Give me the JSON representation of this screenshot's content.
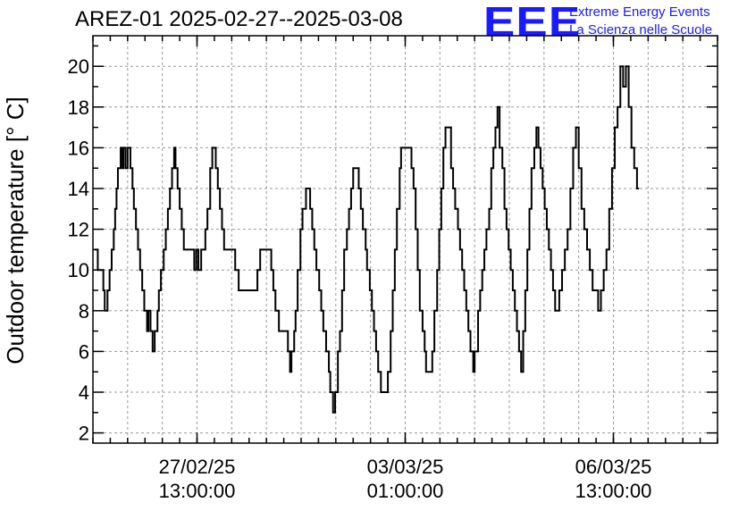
{
  "header": {
    "title": "AREZ-01 2025-02-27--2025-03-08",
    "logo": "EEE",
    "logo_line1": "Extreme Energy Events",
    "logo_line2": "La Scienza nelle Scuole"
  },
  "chart_data": {
    "type": "line",
    "title": "AREZ-01 2025-02-27--2025-03-08",
    "xlabel": "",
    "ylabel": "Outdoor temperature [° C]",
    "ylim": [
      1.5,
      21.5
    ],
    "y_ticks": [
      2,
      4,
      6,
      8,
      10,
      12,
      14,
      16,
      18,
      20
    ],
    "x_ticks": [
      {
        "t": 1,
        "label_line1": "27/02/25",
        "label_line2": "13:00:00"
      },
      {
        "t": 4,
        "label_line1": "03/03/25",
        "label_line2": "01:00:00"
      },
      {
        "t": 7,
        "label_line1": "06/03/25",
        "label_line2": "13:00:00"
      }
    ],
    "xlim": [
      -0.5,
      8.5
    ],
    "step_style": "histogram-step",
    "grid": true,
    "series": [
      {
        "color": "#000000",
        "points": [
          [
            -0.47,
            11
          ],
          [
            -0.43,
            10
          ],
          [
            -0.38,
            10
          ],
          [
            -0.35,
            9
          ],
          [
            -0.33,
            8
          ],
          [
            -0.29,
            9
          ],
          [
            -0.26,
            10
          ],
          [
            -0.23,
            11
          ],
          [
            -0.2,
            12
          ],
          [
            -0.18,
            13
          ],
          [
            -0.16,
            14
          ],
          [
            -0.14,
            15
          ],
          [
            -0.1,
            16
          ],
          [
            -0.08,
            15
          ],
          [
            -0.06,
            16
          ],
          [
            -0.03,
            15
          ],
          [
            0.0,
            16
          ],
          [
            0.04,
            15
          ],
          [
            0.07,
            14
          ],
          [
            0.09,
            13
          ],
          [
            0.12,
            12
          ],
          [
            0.15,
            11
          ],
          [
            0.18,
            10
          ],
          [
            0.21,
            9
          ],
          [
            0.24,
            8
          ],
          [
            0.28,
            7
          ],
          [
            0.3,
            8
          ],
          [
            0.33,
            7
          ],
          [
            0.36,
            6
          ],
          [
            0.39,
            7
          ],
          [
            0.43,
            8
          ],
          [
            0.45,
            9
          ],
          [
            0.48,
            10
          ],
          [
            0.52,
            11
          ],
          [
            0.55,
            12
          ],
          [
            0.58,
            13
          ],
          [
            0.61,
            14
          ],
          [
            0.64,
            15
          ],
          [
            0.67,
            16
          ],
          [
            0.69,
            15
          ],
          [
            0.72,
            14
          ],
          [
            0.75,
            13
          ],
          [
            0.78,
            12
          ],
          [
            0.81,
            11
          ],
          [
            0.93,
            11
          ],
          [
            0.96,
            10
          ],
          [
            0.99,
            11
          ],
          [
            1.02,
            10
          ],
          [
            1.06,
            11
          ],
          [
            1.12,
            12
          ],
          [
            1.15,
            13
          ],
          [
            1.19,
            15
          ],
          [
            1.22,
            16
          ],
          [
            1.27,
            15
          ],
          [
            1.3,
            14
          ],
          [
            1.33,
            13
          ],
          [
            1.36,
            12
          ],
          [
            1.39,
            11
          ],
          [
            1.52,
            11
          ],
          [
            1.55,
            10
          ],
          [
            1.6,
            9
          ],
          [
            1.84,
            9
          ],
          [
            1.87,
            10
          ],
          [
            1.91,
            11
          ],
          [
            2.07,
            10
          ],
          [
            2.1,
            9
          ],
          [
            2.13,
            8
          ],
          [
            2.18,
            7
          ],
          [
            2.31,
            6
          ],
          [
            2.34,
            5
          ],
          [
            2.36,
            6
          ],
          [
            2.4,
            7
          ],
          [
            2.42,
            8
          ],
          [
            2.45,
            10
          ],
          [
            2.49,
            12
          ],
          [
            2.52,
            13
          ],
          [
            2.57,
            14
          ],
          [
            2.63,
            13
          ],
          [
            2.66,
            12
          ],
          [
            2.69,
            11
          ],
          [
            2.72,
            10
          ],
          [
            2.76,
            9
          ],
          [
            2.79,
            8
          ],
          [
            2.82,
            7
          ],
          [
            2.86,
            6
          ],
          [
            2.9,
            5
          ],
          [
            2.92,
            4
          ],
          [
            2.96,
            3
          ],
          [
            2.99,
            4
          ],
          [
            3.03,
            6
          ],
          [
            3.06,
            7
          ],
          [
            3.09,
            9
          ],
          [
            3.12,
            11
          ],
          [
            3.16,
            12
          ],
          [
            3.19,
            13
          ],
          [
            3.22,
            14
          ],
          [
            3.25,
            15
          ],
          [
            3.33,
            14
          ],
          [
            3.36,
            13
          ],
          [
            3.39,
            12
          ],
          [
            3.43,
            11
          ],
          [
            3.45,
            10
          ],
          [
            3.49,
            9
          ],
          [
            3.52,
            8
          ],
          [
            3.55,
            7
          ],
          [
            3.58,
            6
          ],
          [
            3.61,
            5
          ],
          [
            3.65,
            4
          ],
          [
            3.75,
            5
          ],
          [
            3.79,
            7
          ],
          [
            3.82,
            9
          ],
          [
            3.85,
            11
          ],
          [
            3.88,
            13
          ],
          [
            3.92,
            15
          ],
          [
            3.94,
            16
          ],
          [
            4.09,
            15
          ],
          [
            4.12,
            14
          ],
          [
            4.15,
            12
          ],
          [
            4.18,
            10
          ],
          [
            4.21,
            8
          ],
          [
            4.25,
            7
          ],
          [
            4.28,
            6
          ],
          [
            4.3,
            5
          ],
          [
            4.39,
            6
          ],
          [
            4.42,
            8
          ],
          [
            4.46,
            10
          ],
          [
            4.49,
            12
          ],
          [
            4.52,
            14
          ],
          [
            4.55,
            16
          ],
          [
            4.58,
            17
          ],
          [
            4.66,
            15
          ],
          [
            4.69,
            14
          ],
          [
            4.72,
            13
          ],
          [
            4.76,
            12
          ],
          [
            4.79,
            11
          ],
          [
            4.82,
            10
          ],
          [
            4.85,
            9
          ],
          [
            4.88,
            8
          ],
          [
            4.91,
            7
          ],
          [
            4.94,
            6
          ],
          [
            4.98,
            5
          ],
          [
            5.0,
            6
          ],
          [
            5.05,
            8
          ],
          [
            5.08,
            9
          ],
          [
            5.11,
            10
          ],
          [
            5.14,
            11
          ],
          [
            5.17,
            12
          ],
          [
            5.21,
            13
          ],
          [
            5.24,
            15
          ],
          [
            5.27,
            16
          ],
          [
            5.3,
            17
          ],
          [
            5.33,
            18
          ],
          [
            5.36,
            16
          ],
          [
            5.4,
            15
          ],
          [
            5.43,
            13
          ],
          [
            5.46,
            12
          ],
          [
            5.49,
            11
          ],
          [
            5.52,
            10
          ],
          [
            5.55,
            9
          ],
          [
            5.58,
            8
          ],
          [
            5.61,
            7
          ],
          [
            5.64,
            6
          ],
          [
            5.67,
            5
          ],
          [
            5.7,
            7
          ],
          [
            5.73,
            9
          ],
          [
            5.76,
            11
          ],
          [
            5.79,
            13
          ],
          [
            5.82,
            15
          ],
          [
            5.86,
            16
          ],
          [
            5.89,
            17
          ],
          [
            5.92,
            16
          ],
          [
            5.95,
            15
          ],
          [
            5.98,
            14
          ],
          [
            6.01,
            13
          ],
          [
            6.04,
            12
          ],
          [
            6.07,
            11
          ],
          [
            6.1,
            10
          ],
          [
            6.13,
            9
          ],
          [
            6.16,
            8
          ],
          [
            6.22,
            9
          ],
          [
            6.26,
            10
          ],
          [
            6.3,
            11
          ],
          [
            6.34,
            12
          ],
          [
            6.38,
            14
          ],
          [
            6.42,
            16
          ],
          [
            6.46,
            17
          ],
          [
            6.5,
            15
          ],
          [
            6.54,
            13
          ],
          [
            6.58,
            12
          ],
          [
            6.62,
            11
          ],
          [
            6.66,
            10
          ],
          [
            6.7,
            9
          ],
          [
            6.78,
            8
          ],
          [
            6.82,
            9
          ],
          [
            6.86,
            10
          ],
          [
            6.9,
            11
          ],
          [
            6.94,
            13
          ],
          [
            6.98,
            15
          ],
          [
            7.02,
            17
          ],
          [
            7.06,
            18
          ],
          [
            7.1,
            20
          ],
          [
            7.14,
            19
          ],
          [
            7.18,
            20
          ],
          [
            7.22,
            18
          ],
          [
            7.26,
            16
          ],
          [
            7.3,
            15
          ],
          [
            7.34,
            14
          ]
        ]
      }
    ]
  }
}
